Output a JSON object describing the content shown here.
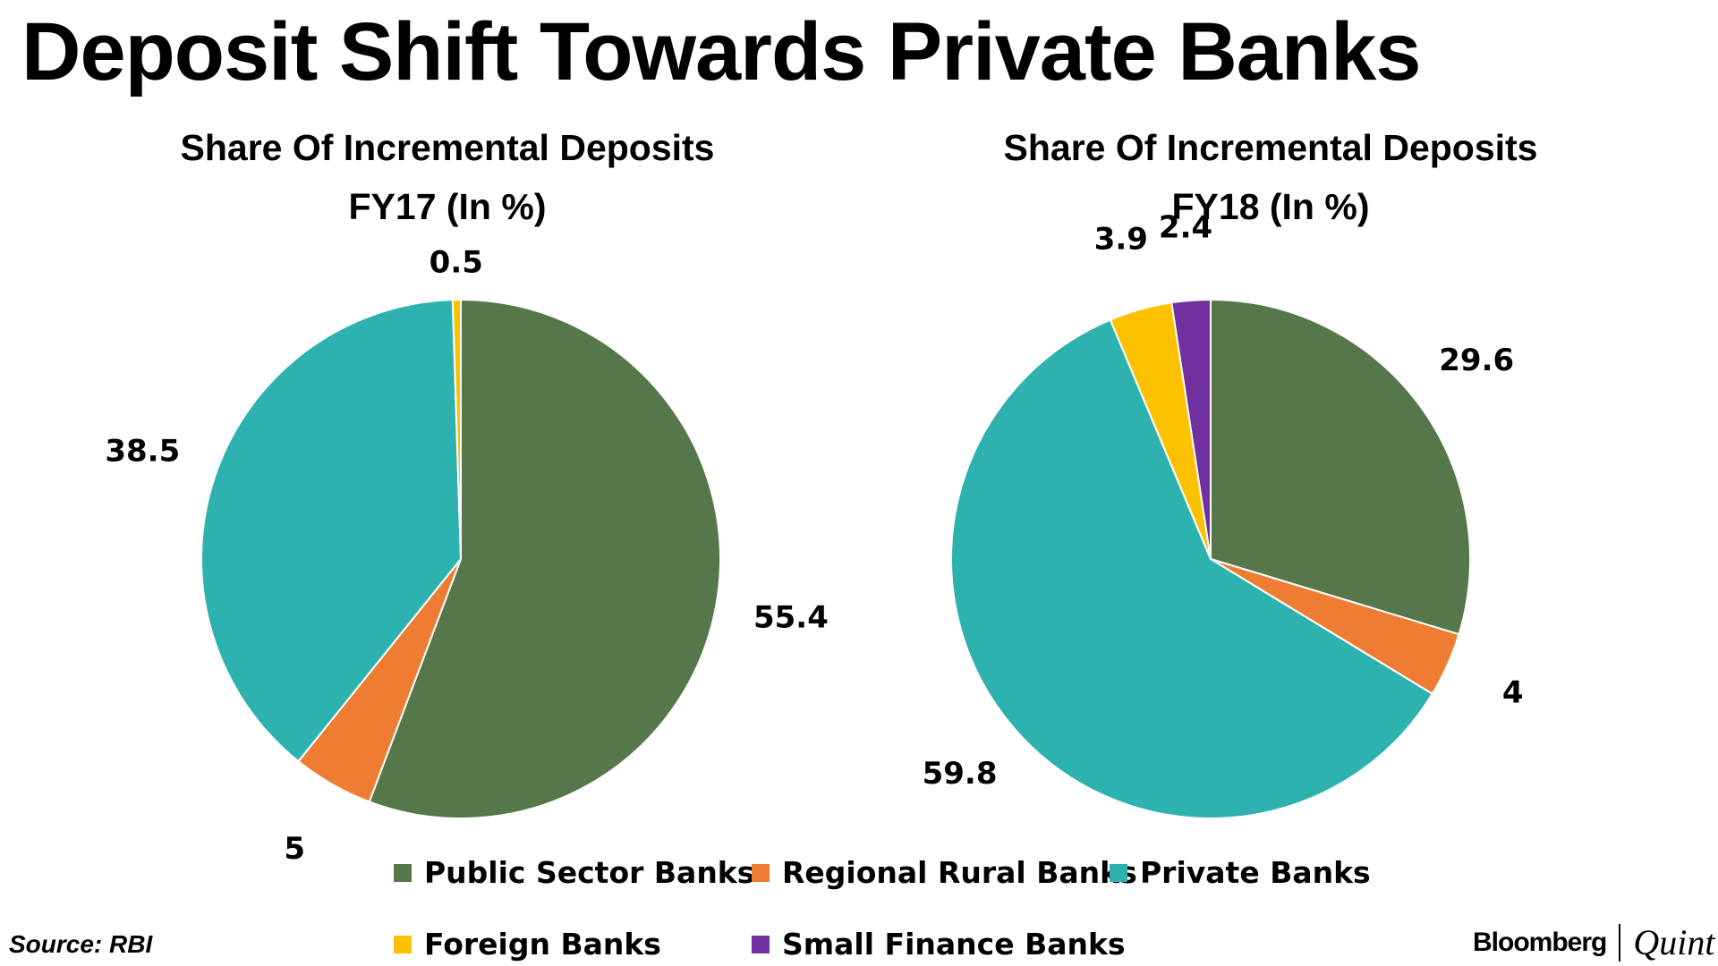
{
  "title": "Deposit Shift Towards Private Banks",
  "colors": {
    "Public Sector Banks": "#56774A",
    "Regional Rural Banks": "#EE7D33",
    "Private Banks": "#2EB2AF",
    "Foreign Banks": "#FDC100",
    "Small Finance Banks": "#7030A0"
  },
  "chart_data": [
    {
      "type": "pie",
      "title_line1": "Share Of Incremental Deposits",
      "title_line2": "FY17 (In %)",
      "slices": [
        {
          "category": "Public Sector Banks",
          "value": 55.4,
          "label": "55.4"
        },
        {
          "category": "Regional Rural Banks",
          "value": 5,
          "label": "5"
        },
        {
          "category": "Private Banks",
          "value": 38.5,
          "label": "38.5"
        },
        {
          "category": "Foreign Banks",
          "value": 0.5,
          "label": "0.5"
        }
      ]
    },
    {
      "type": "pie",
      "title_line1": "Share Of Incremental Deposits",
      "title_line2": "FY18 (In %)",
      "slices": [
        {
          "category": "Public Sector Banks",
          "value": 29.6,
          "label": "29.6"
        },
        {
          "category": "Regional Rural Banks",
          "value": 4,
          "label": "4"
        },
        {
          "category": "Private Banks",
          "value": 59.8,
          "label": "59.8"
        },
        {
          "category": "Foreign Banks",
          "value": 3.9,
          "label": "3.9"
        },
        {
          "category": "Small Finance Banks",
          "value": 2.4,
          "label": "2.4"
        }
      ]
    }
  ],
  "legend": {
    "items": [
      "Public Sector Banks",
      "Regional Rural Banks",
      "Private Banks",
      "Foreign Banks",
      "Small Finance Banks"
    ]
  },
  "source": "Source: RBI",
  "brand": {
    "primary": "Bloomberg",
    "secondary": "Quint"
  }
}
